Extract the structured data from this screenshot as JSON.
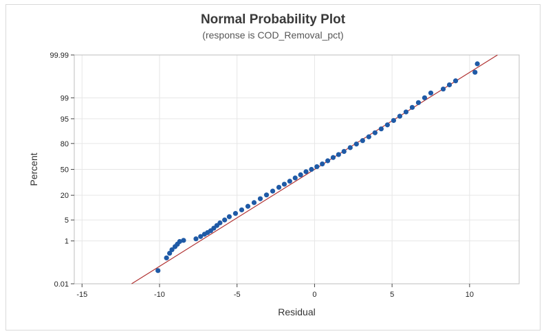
{
  "chart_data": {
    "type": "scatter",
    "title": "Normal Probability Plot",
    "subtitle": "(response is COD_Removal_pct)",
    "xlabel": "Residual",
    "ylabel": "Percent",
    "xlim": [
      -15.5,
      13.2
    ],
    "x_ticks": [
      -15,
      -10,
      -5,
      0,
      5,
      10
    ],
    "y_ticks": [
      0.01,
      1,
      5,
      20,
      50,
      80,
      95,
      99,
      99.99
    ],
    "y_scale": "normal-probability",
    "grid": true,
    "fit_line": {
      "x": [
        -11.8,
        11.8
      ],
      "y_percent": [
        0.01,
        99.99
      ],
      "color": "#b03030"
    },
    "marker_color": "#1f5aa6",
    "residuals": [
      -10.1,
      -9.55,
      -9.35,
      -9.2,
      -9.0,
      -8.85,
      -8.7,
      -8.45,
      -7.65,
      -7.35,
      -7.1,
      -6.9,
      -6.7,
      -6.5,
      -6.3,
      -6.1,
      -5.8,
      -5.5,
      -5.1,
      -4.7,
      -4.3,
      -3.9,
      -3.5,
      -3.1,
      -2.7,
      -2.3,
      -1.95,
      -1.6,
      -1.25,
      -0.9,
      -0.55,
      -0.2,
      0.15,
      0.5,
      0.85,
      1.2,
      1.55,
      1.9,
      2.3,
      2.7,
      3.1,
      3.5,
      3.9,
      4.3,
      4.7,
      5.1,
      5.5,
      5.9,
      6.3,
      6.7,
      7.1,
      7.5,
      8.3,
      8.7,
      9.1,
      10.35,
      10.5
    ],
    "percents": [
      0.05,
      0.2,
      0.32,
      0.45,
      0.6,
      0.75,
      0.95,
      1.05,
      1.2,
      1.45,
      1.75,
      2.0,
      2.3,
      2.8,
      3.4,
      4.1,
      5.0,
      6.2,
      7.6,
      9.4,
      11.5,
      14.0,
      17.0,
      20.3,
      24.0,
      28.0,
      31.5,
      35.0,
      39.0,
      43.0,
      47.0,
      50.0,
      53.5,
      57.0,
      61.0,
      65.0,
      68.5,
      72.0,
      76.0,
      79.5,
      82.5,
      85.5,
      88.3,
      90.6,
      92.6,
      94.4,
      95.8,
      96.9,
      97.8,
      98.5,
      99.0,
      99.35,
      99.55,
      99.7,
      99.8,
      99.92,
      99.97
    ]
  }
}
